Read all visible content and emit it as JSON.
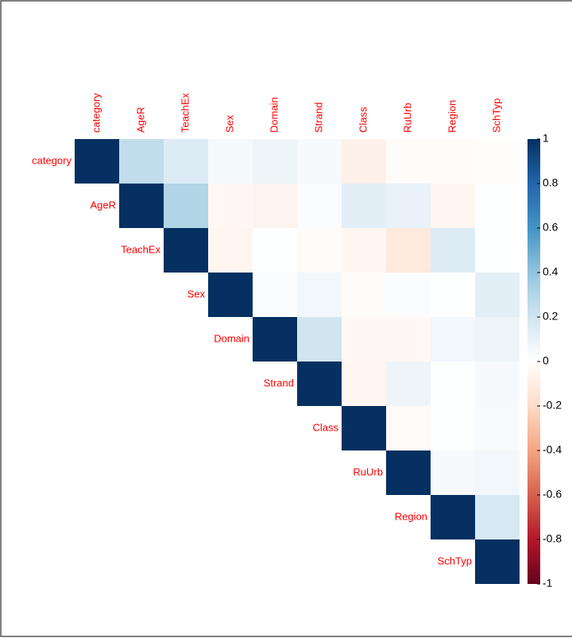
{
  "chart_data": {
    "type": "heatmap",
    "variables": [
      "category",
      "AgeR",
      "TeachEx",
      "Sex",
      "Domain",
      "Strand",
      "Class",
      "RuUrb",
      "Region",
      "SchTyp"
    ],
    "z": [
      [
        1,
        0.25,
        0.15,
        0.05,
        0.08,
        0.04,
        -0.08,
        -0.02,
        -0.02,
        -0.01
      ],
      [
        null,
        1,
        0.3,
        -0.04,
        -0.06,
        0.02,
        0.12,
        0.1,
        -0.05,
        0.01
      ],
      [
        null,
        null,
        1,
        -0.05,
        0.01,
        -0.02,
        -0.05,
        -0.12,
        0.15,
        0.01
      ],
      [
        null,
        null,
        null,
        1,
        0.02,
        0.06,
        -0.02,
        0.02,
        0.01,
        0.12
      ],
      [
        null,
        null,
        null,
        null,
        1,
        0.2,
        -0.04,
        -0.04,
        0.06,
        0.08
      ],
      [
        null,
        null,
        null,
        null,
        null,
        1,
        -0.05,
        0.08,
        0.01,
        0.04
      ],
      [
        null,
        null,
        null,
        null,
        null,
        null,
        1,
        -0.02,
        0.01,
        0.03
      ],
      [
        null,
        null,
        null,
        null,
        null,
        null,
        null,
        1,
        0.04,
        0.06
      ],
      [
        null,
        null,
        null,
        null,
        null,
        null,
        null,
        null,
        1,
        0.18
      ],
      [
        null,
        null,
        null,
        null,
        null,
        null,
        null,
        null,
        null,
        1
      ]
    ],
    "zlim": [
      -1,
      1
    ],
    "zticks": [
      1,
      0.8,
      0.6,
      0.4,
      0.2,
      0,
      -0.2,
      -0.4,
      -0.6,
      -0.8,
      -1
    ],
    "colors": [
      "#67001F",
      "#B2182B",
      "#D6604D",
      "#F4A582",
      "#FDDBC7",
      "#FFFFFF",
      "#D1E5F0",
      "#92C5DE",
      "#4393C3",
      "#2166AC",
      "#053061"
    ]
  }
}
